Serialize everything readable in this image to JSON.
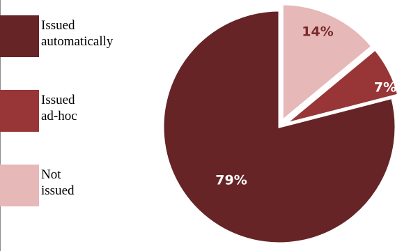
{
  "chart_data": {
    "type": "pie",
    "categories": [
      "Issued automatically",
      "Issued ad-hoc",
      "Not issued"
    ],
    "values": [
      79,
      7,
      14
    ],
    "labels": [
      "79%",
      "7%",
      "14%"
    ],
    "colors": [
      "#662426",
      "#983537",
      "#E6B8B7"
    ],
    "label_colors": [
      "#ffffff",
      "#ffffff",
      "#7a2a2c"
    ],
    "exploded": [
      "Issued ad-hoc",
      "Not issued"
    ],
    "start_angle_deg": 0,
    "direction": "clockwise",
    "legend_position": "left",
    "legend": [
      {
        "line1": "Issued",
        "line2": "automatically",
        "color": "#662426"
      },
      {
        "line1": "Issued",
        "line2": "ad-hoc",
        "color": "#983537"
      },
      {
        "line1": "Not",
        "line2": "issued",
        "color": "#E6B8B7"
      }
    ]
  }
}
